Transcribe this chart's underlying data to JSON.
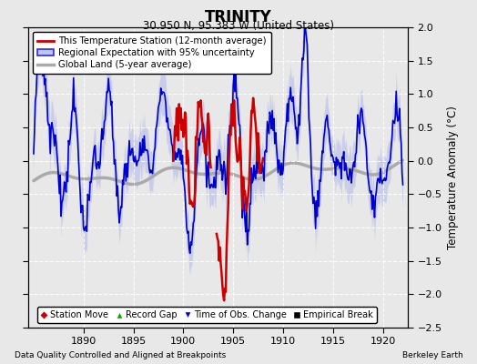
{
  "title": "TRINITY",
  "subtitle": "30.950 N, 95.383 W (United States)",
  "xlabel_left": "Data Quality Controlled and Aligned at Breakpoints",
  "xlabel_right": "Berkeley Earth",
  "ylabel": "Temperature Anomaly (°C)",
  "xlim": [
    1884.5,
    1922.5
  ],
  "ylim": [
    -2.5,
    2.0
  ],
  "yticks": [
    -2.5,
    -2,
    -1.5,
    -1,
    -0.5,
    0,
    0.5,
    1,
    1.5,
    2
  ],
  "xticks": [
    1890,
    1895,
    1900,
    1905,
    1910,
    1915,
    1920
  ],
  "bg_color": "#e8e8e8",
  "plot_bg_color": "#e8e8e8",
  "shade_color": "#b0b8e8",
  "shade_alpha": 0.55,
  "regional_color": "#0000cc",
  "station_color": "#cc0000",
  "global_color": "#aaaaaa",
  "global_lw": 2.5,
  "regional_lw": 1.2,
  "station_lw": 1.8,
  "grid_color": "#ffffff",
  "grid_lw": 0.8,
  "legend_marker_colors": {
    "station_move": "#cc0000",
    "record_gap": "#00aa00",
    "time_obs": "#0000cc",
    "empirical": "#000000"
  },
  "seed": 42
}
